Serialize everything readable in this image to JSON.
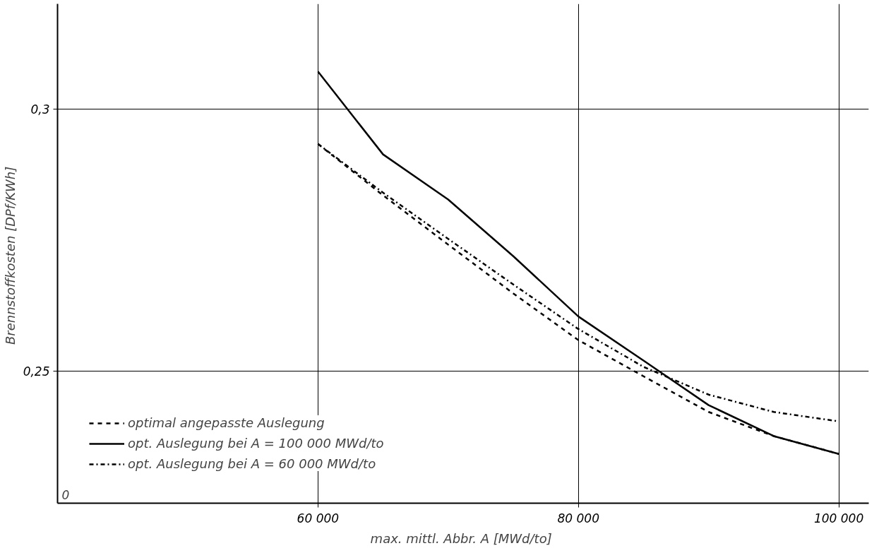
{
  "chart_data": {
    "type": "line",
    "xlabel": "max. mittl. Abbr. A  [MWd/to]",
    "ylabel": "Brennstoffkosten  [DPf/KWh]",
    "x": [
      60000,
      65000,
      70000,
      75000,
      80000,
      85000,
      90000,
      95000,
      100000
    ],
    "series": [
      {
        "name": "optimal angepasste Auslegung",
        "color": "#000000",
        "line_style": "dashed",
        "values": [
          0.2933,
          0.2835,
          0.2741,
          0.2648,
          0.2559,
          0.249,
          0.2422,
          0.2376,
          0.2342
        ]
      },
      {
        "name": "opt. Auslegung bei A = 100 000 MWd/to",
        "color": "#000000",
        "line_style": "solid",
        "values": [
          0.3071,
          0.2913,
          0.2827,
          0.2719,
          0.2604,
          0.252,
          0.2435,
          0.2376,
          0.2342
        ]
      },
      {
        "name": "opt. Auslegung bei A = 60 000 MWd/to",
        "color": "#000000",
        "line_style": "dashdot",
        "values": [
          0.2933,
          0.284,
          0.2752,
          0.2665,
          0.258,
          0.2508,
          0.2455,
          0.2422,
          0.2404
        ]
      }
    ],
    "xlim": [
      40000,
      102300
    ],
    "ylim": [
      0.2248,
      0.32
    ],
    "xticks": [
      {
        "value": 60000,
        "label": "60 000"
      },
      {
        "value": 80000,
        "label": "80 000"
      },
      {
        "value": 100000,
        "label": "100 000"
      }
    ],
    "yticks": [
      {
        "value": 0.25,
        "label": "0,25"
      },
      {
        "value": 0.3,
        "label": "0,3"
      }
    ],
    "grid": true,
    "legend": "bottom left",
    "annotations": [
      "0"
    ]
  }
}
